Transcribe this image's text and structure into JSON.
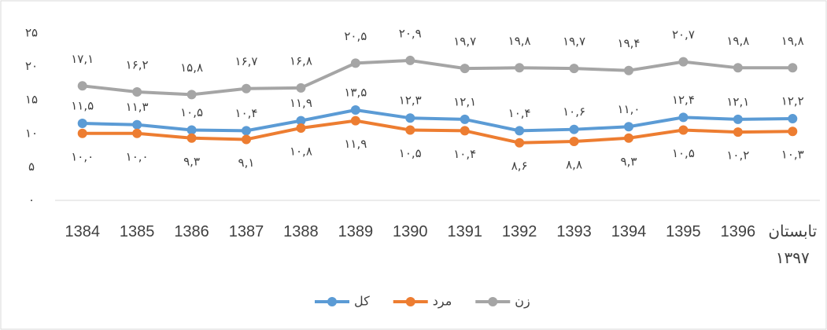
{
  "chart_data": {
    "type": "line",
    "categories": [
      "1384",
      "1385",
      "1386",
      "1387",
      "1388",
      "1389",
      "1390",
      "1391",
      "1392",
      "1393",
      "1394",
      "1395",
      "1396",
      "تابستان ۱۳۹۷"
    ],
    "ylim": [
      0,
      25
    ],
    "yticks": [
      {
        "value": 0,
        "label": "۰"
      },
      {
        "value": 5,
        "label": "۵"
      },
      {
        "value": 10,
        "label": "۱۰"
      },
      {
        "value": 15,
        "label": "۱۵"
      },
      {
        "value": 20,
        "label": "۲۰"
      },
      {
        "value": 25,
        "label": "۲۵"
      }
    ],
    "grid": false,
    "legend": "bottom",
    "series": [
      {
        "name": "کل",
        "color": "#5b9bd5",
        "values": [
          11.5,
          11.3,
          10.5,
          10.4,
          11.9,
          13.5,
          12.3,
          12.1,
          10.4,
          10.6,
          11.0,
          12.4,
          12.1,
          12.2
        ],
        "value_labels": [
          "۱۱,۵",
          "۱۱,۳",
          "۱۰,۵",
          "۱۰,۴",
          "۱۱,۹",
          "۱۳,۵",
          "۱۲,۳",
          "۱۲,۱",
          "۱۰,۴",
          "۱۰,۶",
          "۱۱,۰",
          "۱۲,۴",
          "۱۲,۱",
          "۱۲,۲"
        ]
      },
      {
        "name": "مرد",
        "color": "#ed7d31",
        "values": [
          10.0,
          10.0,
          9.3,
          9.1,
          10.8,
          11.9,
          10.5,
          10.4,
          8.6,
          8.8,
          9.3,
          10.5,
          10.2,
          10.3
        ],
        "value_labels": [
          "۱۰,۰",
          "۱۰,۰",
          "۹,۳",
          "۹,۱",
          "۱۰,۸",
          "۱۱,۹",
          "۱۰,۵",
          "۱۰,۴",
          "۸,۶",
          "۸,۸",
          "۹,۳",
          "۱۰,۵",
          "۱۰,۲",
          "۱۰,۳"
        ]
      },
      {
        "name": "زن",
        "color": "#a5a5a5",
        "values": [
          17.1,
          16.2,
          15.8,
          16.7,
          16.8,
          20.5,
          20.9,
          19.7,
          19.8,
          19.7,
          19.4,
          20.7,
          19.8,
          19.8
        ],
        "value_labels": [
          "۱۷,۱",
          "۱۶,۲",
          "۱۵,۸",
          "۱۶,۷",
          "۱۶,۸",
          "۲۰,۵",
          "۲۰,۹",
          "۱۹,۷",
          "۱۹,۸",
          "۱۹,۷",
          "۱۹,۴",
          "۲۰,۷",
          "۱۹,۸",
          "۱۹,۸"
        ]
      }
    ]
  }
}
